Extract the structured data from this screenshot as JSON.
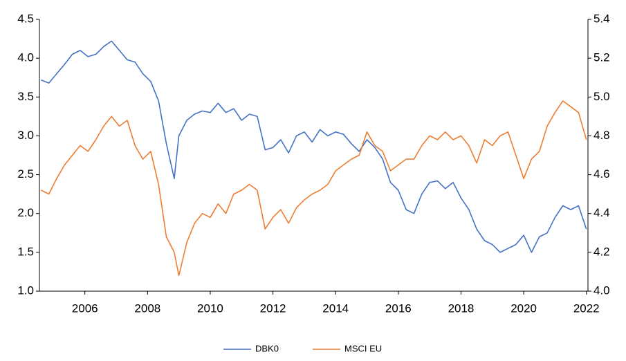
{
  "chart_data": {
    "type": "line",
    "x": [
      2004.6,
      2004.85,
      2005.1,
      2005.35,
      2005.6,
      2005.85,
      2006.1,
      2006.35,
      2006.6,
      2006.85,
      2007.1,
      2007.35,
      2007.6,
      2007.85,
      2008.1,
      2008.35,
      2008.6,
      2008.85,
      2009.0,
      2009.25,
      2009.5,
      2009.75,
      2010.0,
      2010.25,
      2010.5,
      2010.75,
      2011.0,
      2011.25,
      2011.5,
      2011.75,
      2012.0,
      2012.25,
      2012.5,
      2012.75,
      2013.0,
      2013.25,
      2013.5,
      2013.75,
      2014.0,
      2014.25,
      2014.5,
      2014.75,
      2015.0,
      2015.25,
      2015.5,
      2015.75,
      2016.0,
      2016.25,
      2016.5,
      2016.75,
      2017.0,
      2017.25,
      2017.5,
      2017.75,
      2018.0,
      2018.25,
      2018.5,
      2018.75,
      2019.0,
      2019.25,
      2019.5,
      2019.75,
      2020.0,
      2020.25,
      2020.5,
      2020.75,
      2021.0,
      2021.25,
      2021.5,
      2021.75,
      2022.0
    ],
    "series": [
      {
        "name": "DBK0",
        "color": "#4472c4",
        "values": [
          3.72,
          3.68,
          3.8,
          3.92,
          4.05,
          4.1,
          4.02,
          4.05,
          4.15,
          4.22,
          4.1,
          3.98,
          3.95,
          3.8,
          3.7,
          3.45,
          2.9,
          2.45,
          3.0,
          3.2,
          3.28,
          3.32,
          3.3,
          3.42,
          3.3,
          3.35,
          3.2,
          3.28,
          3.25,
          2.82,
          2.85,
          2.95,
          2.78,
          3.0,
          3.05,
          2.92,
          3.08,
          3.0,
          3.05,
          3.02,
          2.9,
          2.8,
          2.95,
          2.85,
          2.7,
          2.4,
          2.3,
          2.05,
          2.0,
          2.25,
          2.4,
          2.42,
          2.32,
          2.4,
          2.2,
          2.05,
          1.8,
          1.65,
          1.6,
          1.5,
          1.55,
          1.6,
          1.72,
          1.5,
          1.7,
          1.75,
          1.95,
          2.1,
          2.05,
          2.1,
          1.8
        ]
      },
      {
        "name": "MSCI  EU",
        "color": "#ed7d31",
        "axis": "y2",
        "values": [
          4.52,
          4.5,
          4.58,
          4.65,
          4.7,
          4.75,
          4.72,
          4.78,
          4.85,
          4.9,
          4.85,
          4.88,
          4.75,
          4.68,
          4.72,
          4.55,
          4.28,
          4.2,
          4.08,
          4.25,
          4.35,
          4.4,
          4.38,
          4.45,
          4.4,
          4.5,
          4.52,
          4.55,
          4.52,
          4.32,
          4.38,
          4.42,
          4.35,
          4.43,
          4.47,
          4.5,
          4.52,
          4.55,
          4.62,
          4.65,
          4.68,
          4.7,
          4.82,
          4.75,
          4.72,
          4.62,
          4.65,
          4.68,
          4.68,
          4.75,
          4.8,
          4.78,
          4.82,
          4.78,
          4.8,
          4.75,
          4.66,
          4.78,
          4.75,
          4.8,
          4.82,
          4.7,
          4.58,
          4.68,
          4.72,
          4.85,
          4.92,
          4.98,
          4.95,
          4.92,
          4.78
        ]
      }
    ],
    "xlim": [
      2004.55,
      2022.05
    ],
    "xticks": [
      2006,
      2008,
      2010,
      2012,
      2014,
      2016,
      2018,
      2020,
      2022
    ],
    "ylim": [
      1.0,
      4.5
    ],
    "yticks": [
      {
        "value": 1.0,
        "label": "1.0"
      },
      1.5,
      {
        "value": 2.0,
        "label": "2.0"
      },
      2.5,
      {
        "value": 3.0,
        "label": "3.0"
      },
      3.5,
      {
        "value": 4.0,
        "label": "4.0"
      },
      4.5
    ],
    "y2lim": [
      4.0,
      5.4
    ],
    "y2ticks": [
      {
        "value": 4.0,
        "label": "4.0"
      },
      4.2,
      4.4,
      4.6,
      4.8,
      {
        "value": 5.0,
        "label": "5.0"
      },
      5.2,
      5.4
    ],
    "legend": "bottom"
  }
}
